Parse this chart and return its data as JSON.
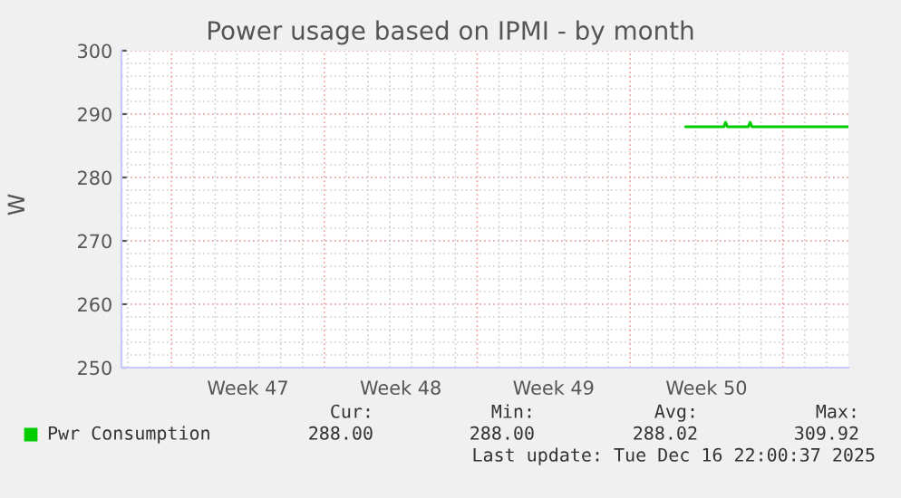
{
  "chart_data": {
    "type": "line",
    "title": "Power usage based on IPMI - by month",
    "ylabel": "W",
    "x": [
      "2025-12-10T13:30",
      "2025-12-12T07:00",
      "2025-12-12T09:00",
      "2025-12-12T11:00",
      "2025-12-13T10:00",
      "2025-12-13T12:00",
      "2025-12-13T14:00",
      "2025-12-17T23:00"
    ],
    "series": [
      {
        "name": "Pwr Consumption",
        "color": "#00cc00",
        "values": [
          288,
          288,
          288.7,
          288,
          288,
          288.7,
          288,
          288
        ]
      }
    ],
    "xlim": [
      "2025-11-14T17:00",
      "2025-12-18T00:00"
    ],
    "xticks": [
      {
        "value": "2025-11-20T12:00",
        "label": "Week 47"
      },
      {
        "value": "2025-11-27T12:00",
        "label": "Week 48"
      },
      {
        "value": "2025-12-04T12:00",
        "label": "Week 49"
      },
      {
        "value": "2025-12-11T12:00",
        "label": "Week 50"
      }
    ],
    "ylim": [
      250,
      300
    ],
    "yticks": [
      250,
      260,
      270,
      280,
      290,
      300
    ],
    "grid": true,
    "legend": "bottom",
    "marker": "none",
    "line_style": "solid",
    "annotations": [
      "Cur:",
      "Min:",
      "Avg:",
      "Max:",
      "288.00",
      "288.00",
      "288.02",
      "309.92",
      "Last update: Tue Dec 16 22:00:37 2025"
    ]
  }
}
